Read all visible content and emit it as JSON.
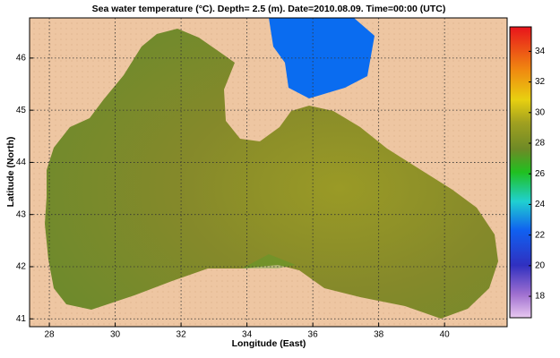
{
  "map": {
    "title": "Sea water temperature (°C).  Depth=  2.5 (m).  Date=2010.08.09.  Time=00:00 (UTC)",
    "xlabel": "Longitude (East)",
    "ylabel": "Latitude (North)",
    "xlim": [
      27.4,
      41.9
    ],
    "ylim": [
      40.85,
      46.77
    ],
    "xticks": [
      28,
      30,
      32,
      34,
      36,
      38,
      40
    ],
    "yticks": [
      41,
      42,
      43,
      44,
      45,
      46
    ],
    "grid": true
  },
  "colorbar": {
    "lim": [
      16.6,
      35.6
    ],
    "ticks": [
      18,
      20,
      22,
      24,
      26,
      28,
      30,
      32,
      34
    ]
  }
}
